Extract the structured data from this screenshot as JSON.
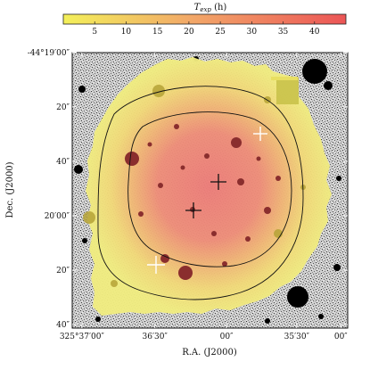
{
  "chart_data": {
    "type": "heatmap",
    "title": "",
    "colorbar": {
      "label_main": "T",
      "label_sub": "exp",
      "label_unit": " (h)",
      "ticks": [
        5,
        10,
        15,
        20,
        25,
        30,
        35,
        40
      ],
      "range": [
        0,
        45
      ],
      "colors": [
        "#f2ee4e",
        "#ee5a58"
      ],
      "location": "top"
    },
    "xlabel": "R.A. (J2000)",
    "ylabel": "Dec. (J2000)",
    "x_ticks": [
      "325°37′00″",
      "36′30″",
      "00″",
      "35′30″",
      "00″"
    ],
    "y_ticks": [
      "-44°19′00″",
      "20″",
      "40″",
      "20′00″",
      "20″",
      "40″"
    ],
    "contours": [
      "outer",
      "inner"
    ],
    "markers": [
      {
        "type": "cross",
        "color": "#111111"
      },
      {
        "type": "cross",
        "color": "#111111"
      },
      {
        "type": "cross",
        "color": "#ffffff"
      },
      {
        "type": "cross",
        "color": "#ffffff"
      }
    ]
  }
}
